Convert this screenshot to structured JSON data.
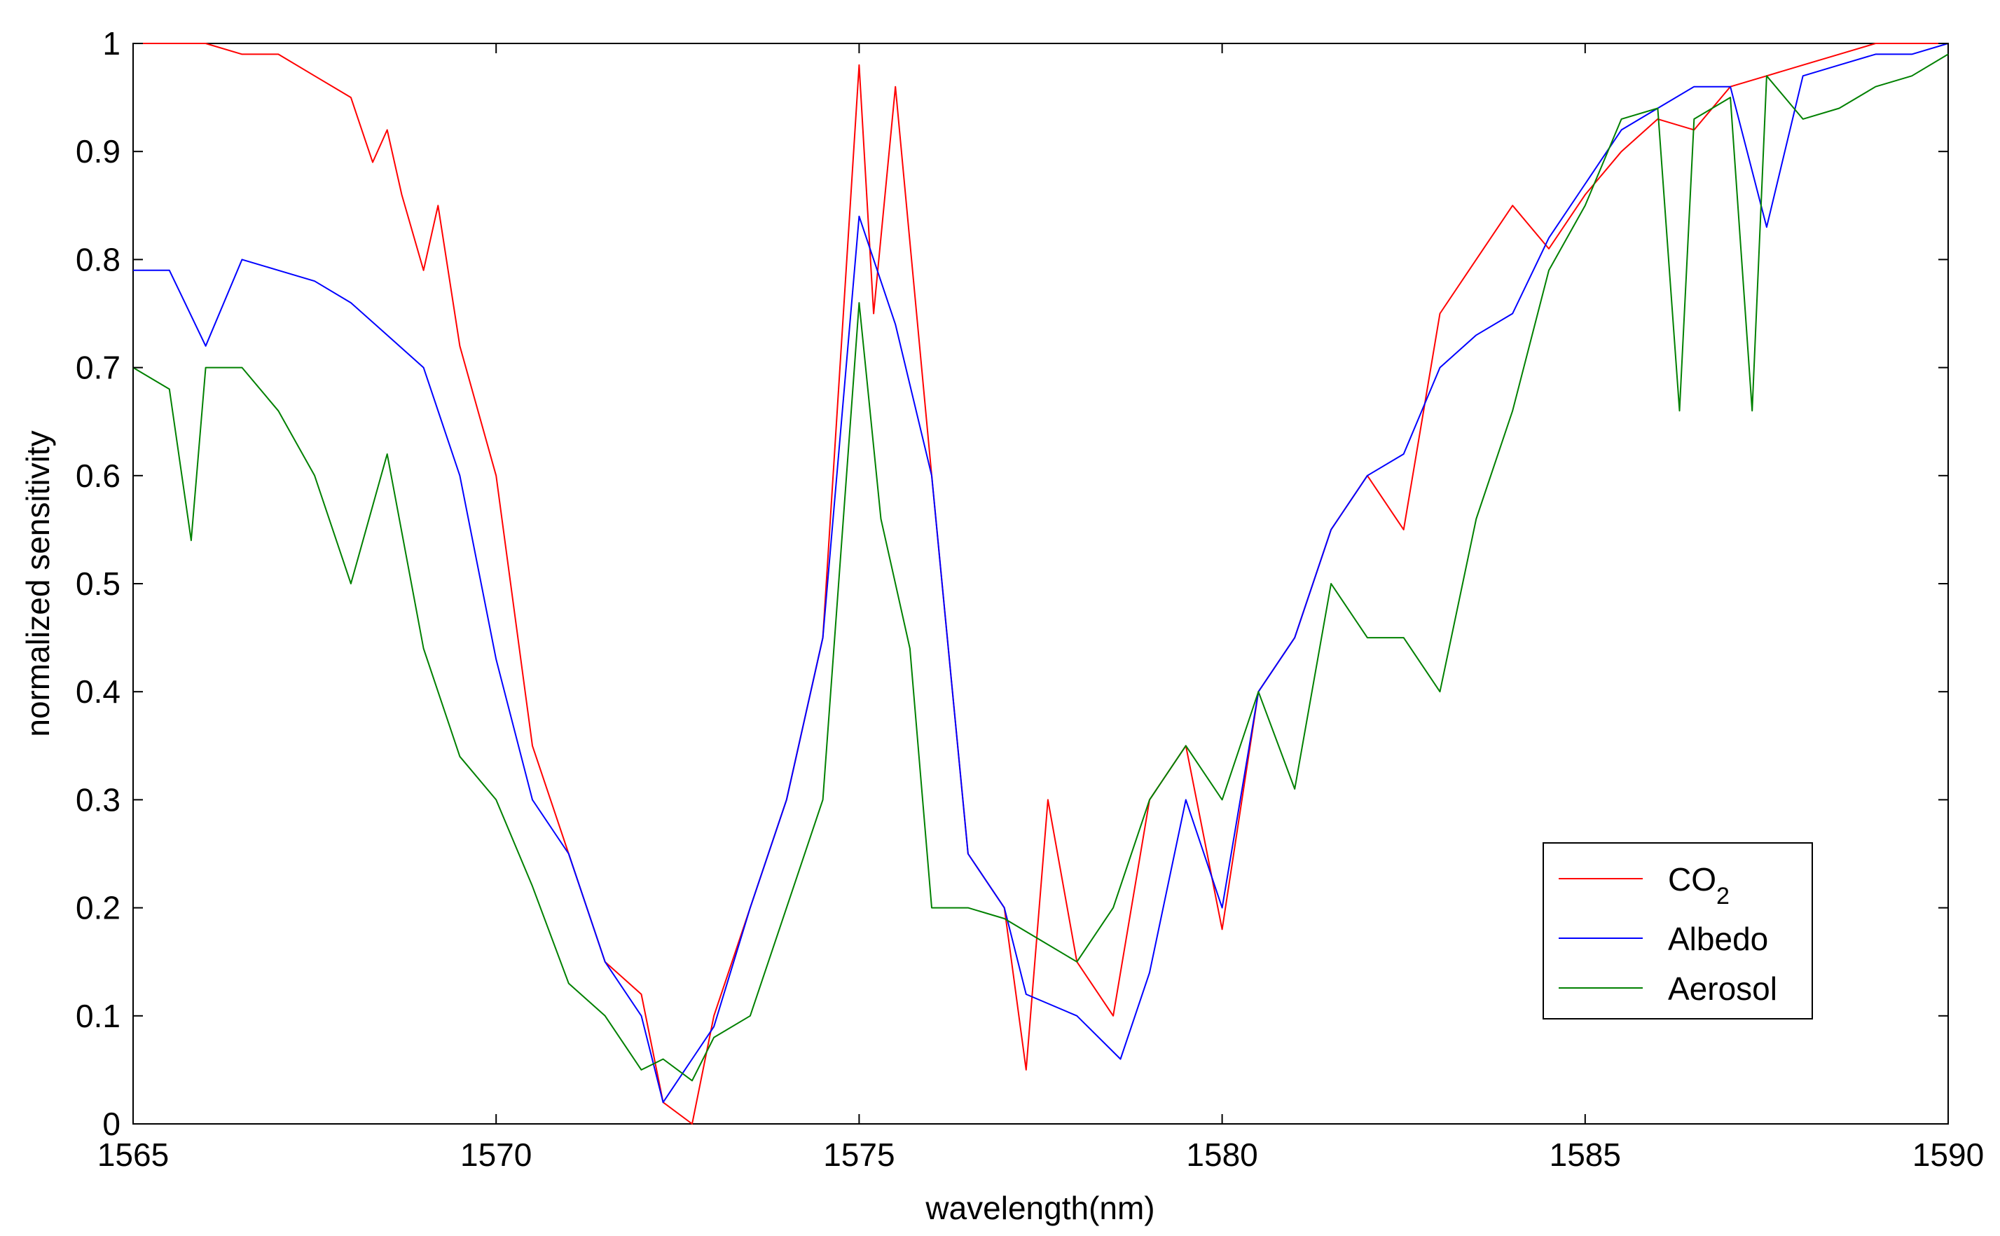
{
  "chart_data": {
    "type": "line",
    "title": "",
    "xlabel": "wavelength(nm)",
    "ylabel": "normalized sensitivity",
    "xlim": [
      1565,
      1590
    ],
    "ylim": [
      0,
      1
    ],
    "xticks": [
      1565,
      1570,
      1575,
      1580,
      1585,
      1590
    ],
    "yticks": [
      0,
      0.1,
      0.2,
      0.3,
      0.4,
      0.5,
      0.6,
      0.7,
      0.8,
      0.9,
      1
    ],
    "ytick_labels": [
      "0",
      "0.1",
      "0.2",
      "0.3",
      "0.4",
      "0.5",
      "0.6",
      "0.7",
      "0.8",
      "0.9",
      "1"
    ],
    "grid": false,
    "legend_position": "bottom-right",
    "legend": [
      {
        "name_main": "CO",
        "name_sub": "2",
        "color": "#ff0000"
      },
      {
        "name_main": "Albedo",
        "color": "#0000ff"
      },
      {
        "name_main": "Aerosol",
        "color": "#008000"
      }
    ],
    "series": [
      {
        "name": "CO2",
        "color": "#ff0000",
        "x": [
          1565.0,
          1565.5,
          1566.0,
          1566.5,
          1567.0,
          1567.5,
          1568.0,
          1568.3,
          1568.5,
          1568.7,
          1569.0,
          1569.2,
          1569.5,
          1570.0,
          1570.5,
          1571.0,
          1571.5,
          1572.0,
          1572.3,
          1572.7,
          1573.0,
          1573.5,
          1574.0,
          1574.5,
          1575.0,
          1575.2,
          1575.5,
          1576.0,
          1576.5,
          1577.0,
          1577.3,
          1577.6,
          1578.0,
          1578.5,
          1579.0,
          1579.5,
          1580.0,
          1580.5,
          1581.0,
          1581.5,
          1582.0,
          1582.5,
          1583.0,
          1583.5,
          1584.0,
          1584.5,
          1585.0,
          1585.5,
          1586.0,
          1586.5,
          1587.0,
          1587.5,
          1588.0,
          1588.5,
          1589.0,
          1589.5,
          1590.0
        ],
        "y": [
          1.0,
          1.0,
          1.0,
          0.99,
          0.99,
          0.97,
          0.95,
          0.89,
          0.92,
          0.86,
          0.79,
          0.85,
          0.72,
          0.6,
          0.35,
          0.25,
          0.15,
          0.12,
          0.02,
          0.0,
          0.1,
          0.2,
          0.3,
          0.45,
          0.98,
          0.75,
          0.96,
          0.6,
          0.25,
          0.2,
          0.05,
          0.3,
          0.15,
          0.1,
          0.3,
          0.35,
          0.18,
          0.4,
          0.45,
          0.55,
          0.6,
          0.55,
          0.75,
          0.8,
          0.85,
          0.81,
          0.86,
          0.9,
          0.93,
          0.92,
          0.96,
          0.97,
          0.98,
          0.99,
          1.0,
          1.0,
          1.0
        ]
      },
      {
        "name": "Albedo",
        "color": "#0000ff",
        "x": [
          1565.0,
          1565.5,
          1566.0,
          1566.5,
          1567.0,
          1567.5,
          1568.0,
          1568.5,
          1569.0,
          1569.5,
          1570.0,
          1570.5,
          1571.0,
          1571.5,
          1572.0,
          1572.3,
          1572.7,
          1573.0,
          1573.5,
          1574.0,
          1574.5,
          1575.0,
          1575.5,
          1576.0,
          1576.5,
          1577.0,
          1577.3,
          1578.0,
          1578.6,
          1579.0,
          1579.5,
          1580.0,
          1580.5,
          1581.0,
          1581.5,
          1582.0,
          1582.5,
          1583.0,
          1583.5,
          1584.0,
          1584.5,
          1585.0,
          1585.5,
          1586.0,
          1586.5,
          1587.0,
          1587.5,
          1588.0,
          1588.5,
          1589.0,
          1589.5,
          1590.0
        ],
        "y": [
          0.79,
          0.79,
          0.72,
          0.8,
          0.79,
          0.78,
          0.76,
          0.73,
          0.7,
          0.6,
          0.43,
          0.3,
          0.25,
          0.15,
          0.1,
          0.02,
          0.06,
          0.09,
          0.2,
          0.3,
          0.45,
          0.84,
          0.74,
          0.6,
          0.25,
          0.2,
          0.12,
          0.1,
          0.06,
          0.14,
          0.3,
          0.2,
          0.4,
          0.45,
          0.55,
          0.6,
          0.62,
          0.7,
          0.73,
          0.75,
          0.82,
          0.87,
          0.92,
          0.94,
          0.96,
          0.96,
          0.83,
          0.97,
          0.98,
          0.99,
          0.99,
          1.0
        ]
      },
      {
        "name": "Aerosol",
        "color": "#008000",
        "x": [
          1565.0,
          1565.5,
          1565.8,
          1566.0,
          1566.5,
          1567.0,
          1567.5,
          1568.0,
          1568.5,
          1569.0,
          1569.5,
          1570.0,
          1570.5,
          1571.0,
          1571.5,
          1572.0,
          1572.3,
          1572.7,
          1573.0,
          1573.5,
          1574.0,
          1574.5,
          1575.0,
          1575.3,
          1575.7,
          1576.0,
          1576.5,
          1577.0,
          1577.5,
          1578.0,
          1578.5,
          1579.0,
          1579.5,
          1580.0,
          1580.5,
          1581.0,
          1581.5,
          1582.0,
          1582.5,
          1583.0,
          1583.5,
          1584.0,
          1584.5,
          1585.0,
          1585.5,
          1586.0,
          1586.3,
          1586.5,
          1587.0,
          1587.3,
          1587.5,
          1588.0,
          1588.5,
          1589.0,
          1589.5,
          1590.0
        ],
        "y": [
          0.7,
          0.68,
          0.54,
          0.7,
          0.7,
          0.66,
          0.6,
          0.5,
          0.62,
          0.44,
          0.34,
          0.3,
          0.22,
          0.13,
          0.1,
          0.05,
          0.06,
          0.04,
          0.08,
          0.1,
          0.2,
          0.3,
          0.76,
          0.56,
          0.44,
          0.2,
          0.2,
          0.19,
          0.17,
          0.15,
          0.2,
          0.3,
          0.35,
          0.3,
          0.4,
          0.31,
          0.5,
          0.45,
          0.45,
          0.4,
          0.56,
          0.66,
          0.79,
          0.85,
          0.93,
          0.94,
          0.66,
          0.93,
          0.95,
          0.66,
          0.97,
          0.93,
          0.94,
          0.96,
          0.97,
          0.99
        ]
      }
    ]
  }
}
